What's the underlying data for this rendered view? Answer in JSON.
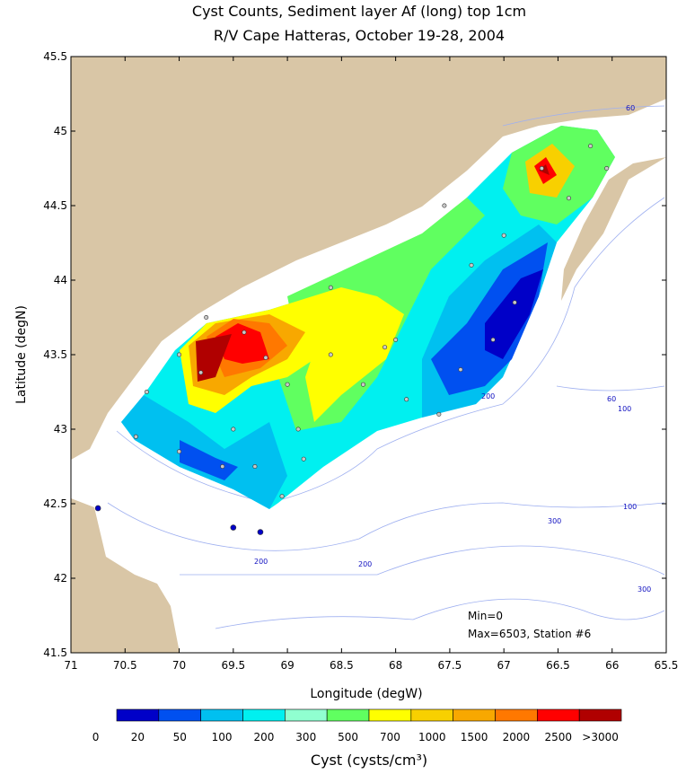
{
  "chart_data": {
    "type": "contour-map",
    "title": "Cyst Counts, Sediment layer Af (long) top 1cm",
    "subtitle": "R/V Cape Hatteras, October 19-28, 2004",
    "x_label": "Longitude (degW)",
    "y_label": "Latitude (degN)",
    "xlim": [
      71,
      65.5
    ],
    "xticks": [
      71,
      70.5,
      70,
      69.5,
      69,
      68.5,
      68,
      67.5,
      67,
      66.5,
      66,
      65.5
    ],
    "ylim": [
      41.5,
      45.5
    ],
    "yticks": [
      41.5,
      42,
      42.5,
      43,
      43.5,
      44,
      44.5,
      45,
      45.5
    ],
    "colorbar": {
      "label": "Cyst (cysts/cm³)",
      "colors": [
        "#0000c8",
        "#0050f0",
        "#00c0f0",
        "#00f0f0",
        "#90ffd0",
        "#60ff60",
        "#ffff00",
        "#f8d000",
        "#f8a800",
        "#ff7800",
        "#ff0000",
        "#b00000"
      ],
      "ticks": [
        0,
        20,
        50,
        100,
        200,
        300,
        500,
        700,
        1000,
        1500,
        2000,
        2500,
        {
          "value": 3000,
          "label": ">3000"
        }
      ]
    },
    "annotations": [
      "Min=0",
      "Max=6503, Station #6"
    ],
    "contour_labels": [
      60,
      60,
      100,
      100,
      200,
      200,
      200,
      300,
      300
    ],
    "stations": {
      "lon": [
        69.8,
        69.75,
        69.4,
        69.2,
        69.0,
        68.9,
        68.85,
        69.05,
        69.3,
        69.5,
        69.6,
        70.0,
        70.4,
        70.3,
        70.0,
        68.6,
        68.3,
        68.1,
        67.9,
        67.6,
        67.4,
        67.1,
        66.9,
        67.3,
        67.0,
        66.65,
        66.4,
        66.2,
        66.05,
        67.55,
        68.0,
        68.6
      ],
      "lat": [
        43.38,
        43.75,
        43.65,
        43.48,
        43.3,
        43.0,
        42.8,
        42.55,
        42.75,
        43.0,
        42.75,
        42.85,
        42.95,
        43.25,
        43.5,
        43.5,
        43.3,
        43.55,
        43.2,
        43.1,
        43.4,
        43.6,
        43.85,
        44.1,
        44.3,
        44.75,
        44.55,
        44.9,
        44.75,
        44.5,
        43.6,
        43.95
      ]
    },
    "outside_stations": {
      "lon": [
        70.75,
        69.5,
        69.25
      ],
      "lat": [
        42.47,
        42.34,
        42.31
      ]
    }
  }
}
